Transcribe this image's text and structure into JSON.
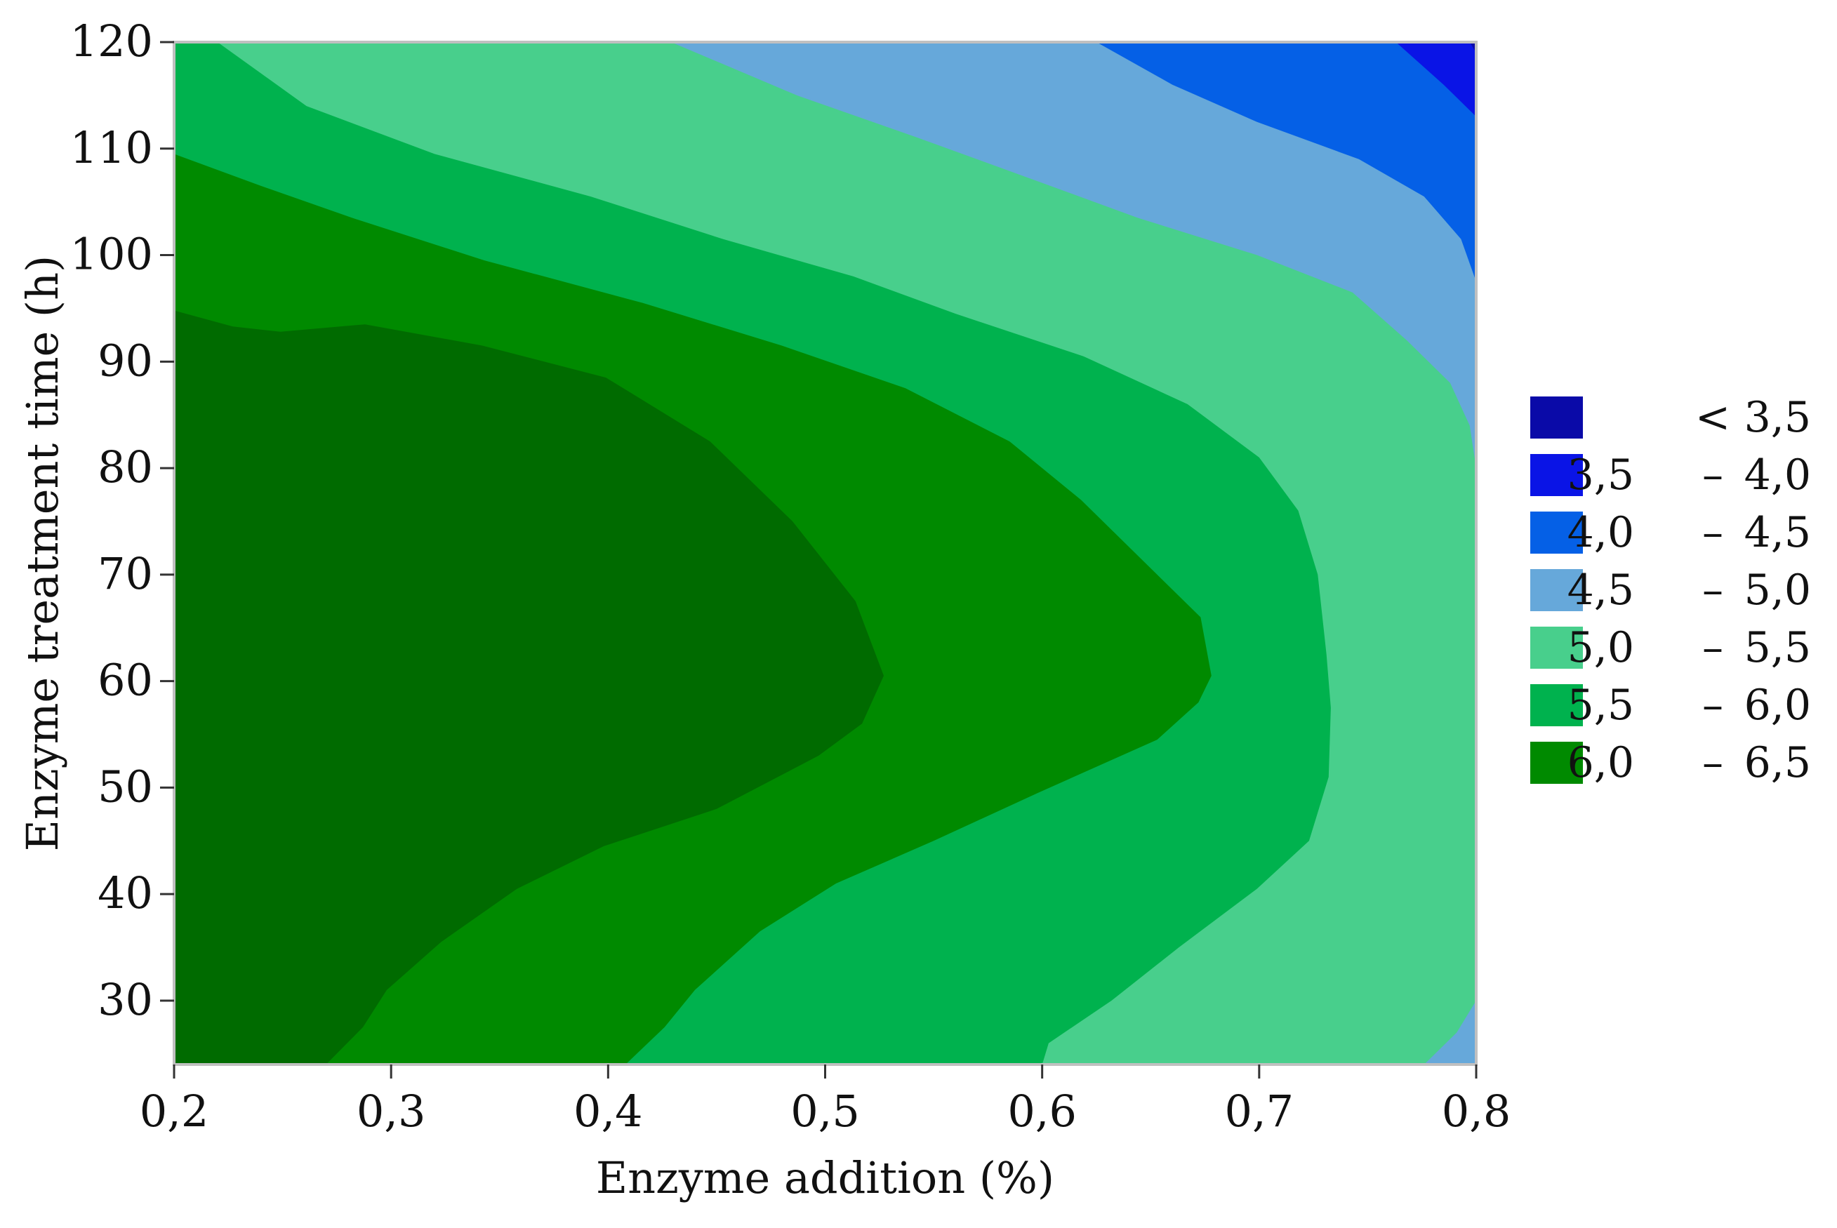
{
  "chart_data": {
    "type": "contour",
    "xlabel": "Enzyme addition (%)",
    "ylabel": "Enzyme treatment time (h)",
    "xlim": [
      0.2,
      0.8
    ],
    "ylim": [
      24,
      120
    ],
    "x_ticks": [
      0.2,
      0.3,
      0.4,
      0.5,
      0.6,
      0.7,
      0.8
    ],
    "x_tick_labels": [
      "0,2",
      "0,3",
      "0,4",
      "0,5",
      "0,6",
      "0,7",
      "0,8"
    ],
    "y_ticks": [
      30,
      40,
      50,
      60,
      70,
      80,
      90,
      100,
      110,
      120
    ],
    "y_tick_labels": [
      "30",
      "40",
      "50",
      "60",
      "70",
      "80",
      "90",
      "100",
      "110",
      "120"
    ],
    "legend_position": "right",
    "levels": [
      {
        "lower": "",
        "op": "<",
        "upper": "3,5",
        "color": "#0a0aa8"
      },
      {
        "lower": "3,5",
        "op": "–",
        "upper": "4,0",
        "color": "#0a14e6"
      },
      {
        "lower": "4,0",
        "op": "–",
        "upper": "4,5",
        "color": "#0560e6"
      },
      {
        "lower": "4,5",
        "op": "–",
        "upper": "5,0",
        "color": "#66a8da"
      },
      {
        "lower": "5,0",
        "op": "–",
        "upper": "5,5",
        "color": "#48cf8c"
      },
      {
        "lower": "5,5",
        "op": "–",
        "upper": "6,0",
        "color": "#00b24e"
      },
      {
        "lower": "6,0",
        "op": "–",
        "upper": "6,5",
        "color": "#008a00"
      }
    ],
    "peak_region_color": "#006b00",
    "contours": [
      {
        "level": 6.5,
        "points": [
          [
            0.2,
            94.8
          ],
          [
            0.227,
            93.3
          ],
          [
            0.249,
            92.8
          ],
          [
            0.288,
            93.5
          ],
          [
            0.342,
            91.5
          ],
          [
            0.399,
            88.5
          ],
          [
            0.447,
            82.5
          ],
          [
            0.485,
            75
          ],
          [
            0.514,
            67.5
          ],
          [
            0.527,
            60.5
          ],
          [
            0.517,
            56
          ],
          [
            0.497,
            53
          ],
          [
            0.45,
            48
          ],
          [
            0.398,
            44.5
          ],
          [
            0.358,
            40.5
          ],
          [
            0.323,
            35.5
          ],
          [
            0.298,
            31
          ],
          [
            0.287,
            27.5
          ],
          [
            0.27,
            24
          ]
        ]
      },
      {
        "level": 6.0,
        "points": [
          [
            0.2,
            109.5
          ],
          [
            0.24,
            106.5
          ],
          [
            0.282,
            103.5
          ],
          [
            0.343,
            99.5
          ],
          [
            0.416,
            95.5
          ],
          [
            0.48,
            91.5
          ],
          [
            0.537,
            87.5
          ],
          [
            0.585,
            82.5
          ],
          [
            0.618,
            77
          ],
          [
            0.653,
            70
          ],
          [
            0.673,
            66
          ],
          [
            0.678,
            60.5
          ],
          [
            0.672,
            58
          ],
          [
            0.653,
            54.5
          ],
          [
            0.598,
            49.5
          ],
          [
            0.55,
            45
          ],
          [
            0.505,
            41
          ],
          [
            0.47,
            36.5
          ],
          [
            0.44,
            31
          ],
          [
            0.426,
            27.5
          ],
          [
            0.408,
            24
          ]
        ]
      },
      {
        "level": 5.5,
        "points": [
          [
            0.22,
            120
          ],
          [
            0.261,
            114
          ],
          [
            0.32,
            109.5
          ],
          [
            0.392,
            105.5
          ],
          [
            0.453,
            101.5
          ],
          [
            0.513,
            98
          ],
          [
            0.56,
            94.5
          ],
          [
            0.619,
            90.5
          ],
          [
            0.667,
            86
          ],
          [
            0.7,
            81
          ],
          [
            0.718,
            76
          ],
          [
            0.727,
            70
          ],
          [
            0.731,
            62.5
          ],
          [
            0.733,
            57.5
          ],
          [
            0.732,
            51
          ],
          [
            0.723,
            45
          ],
          [
            0.699,
            40.5
          ],
          [
            0.663,
            35
          ],
          [
            0.632,
            30
          ],
          [
            0.603,
            26
          ],
          [
            0.6,
            24
          ]
        ]
      },
      {
        "level": 5.0,
        "points": [
          [
            0.429,
            120
          ],
          [
            0.487,
            115
          ],
          [
            0.543,
            111
          ],
          [
            0.597,
            107
          ],
          [
            0.644,
            103.5
          ],
          [
            0.699,
            100
          ],
          [
            0.743,
            96.5
          ],
          [
            0.768,
            92
          ],
          [
            0.788,
            88
          ],
          [
            0.797,
            84
          ],
          [
            0.8,
            80
          ],
          [
            0.8,
            70
          ],
          [
            0.8,
            45
          ],
          [
            0.8,
            40
          ],
          [
            0.8,
            36
          ],
          [
            0.8,
            30
          ],
          [
            0.791,
            27
          ],
          [
            0.776,
            24
          ]
        ]
      },
      {
        "level": 4.5,
        "points": [
          [
            0.625,
            120
          ],
          [
            0.66,
            116
          ],
          [
            0.699,
            112.5
          ],
          [
            0.746,
            109
          ],
          [
            0.776,
            105.5
          ],
          [
            0.793,
            101.5
          ],
          [
            0.8,
            97.5
          ],
          [
            0.8,
            92.5
          ]
        ]
      },
      {
        "level": 4.0,
        "points": [
          [
            0.763,
            120
          ],
          [
            0.785,
            116
          ],
          [
            0.8,
            113
          ],
          [
            0.8,
            106.5
          ]
        ]
      },
      {
        "level": 3.5,
        "points": [
          [
            0.797,
            120
          ],
          [
            0.8,
            119
          ],
          [
            0.8,
            118
          ]
        ]
      }
    ]
  }
}
